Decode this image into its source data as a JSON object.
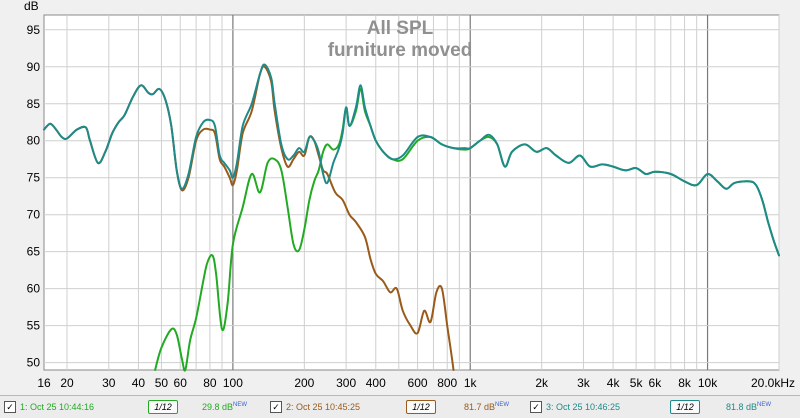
{
  "chart_data": {
    "type": "line",
    "title": "All SPL",
    "subtitle": "furniture moved",
    "ylabel": "dB",
    "xscale": "log",
    "xlim": [
      16,
      20000
    ],
    "ylim": [
      49,
      97
    ],
    "grid": true,
    "y_ticks": [
      50,
      55,
      60,
      65,
      70,
      75,
      80,
      85,
      90,
      95
    ],
    "x_ticks": [
      {
        "value": 16,
        "label": "16"
      },
      {
        "value": 20,
        "label": "20"
      },
      {
        "value": 30,
        "label": "30"
      },
      {
        "value": 40,
        "label": "40"
      },
      {
        "value": 50,
        "label": "50"
      },
      {
        "value": 60,
        "label": "60"
      },
      {
        "value": 80,
        "label": "80"
      },
      {
        "value": 100,
        "label": "100"
      },
      {
        "value": 200,
        "label": "200"
      },
      {
        "value": 300,
        "label": "300"
      },
      {
        "value": 400,
        "label": "400"
      },
      {
        "value": 600,
        "label": "600"
      },
      {
        "value": 800,
        "label": "800"
      },
      {
        "value": 1000,
        "label": "1k"
      },
      {
        "value": 2000,
        "label": "2k"
      },
      {
        "value": 3000,
        "label": "3k"
      },
      {
        "value": 4000,
        "label": "4k"
      },
      {
        "value": 5000,
        "label": "5k"
      },
      {
        "value": 6000,
        "label": "6k"
      },
      {
        "value": 8000,
        "label": "8k"
      },
      {
        "value": 10000,
        "label": "10k"
      },
      {
        "value": 20000,
        "label": "20.0kHz"
      }
    ],
    "series": [
      {
        "name": "1: Oct 25 10:44:16",
        "color": "#22aa22",
        "level": "29.8 dB",
        "points": [
          [
            47,
            49
          ],
          [
            50,
            52
          ],
          [
            55,
            54.5
          ],
          [
            58,
            53.8
          ],
          [
            61,
            50.5
          ],
          [
            63,
            49
          ],
          [
            66,
            53
          ],
          [
            70,
            56
          ],
          [
            75,
            61
          ],
          [
            78,
            63.5
          ],
          [
            82,
            64.5
          ],
          [
            85,
            62
          ],
          [
            90,
            54.5
          ],
          [
            95,
            58
          ],
          [
            100,
            66
          ],
          [
            110,
            71
          ],
          [
            120,
            75.5
          ],
          [
            130,
            73
          ],
          [
            140,
            77
          ],
          [
            150,
            77.5
          ],
          [
            160,
            76
          ],
          [
            170,
            71
          ],
          [
            180,
            66
          ],
          [
            190,
            65.2
          ],
          [
            200,
            68
          ],
          [
            210,
            72
          ],
          [
            220,
            74.5
          ],
          [
            230,
            76
          ],
          [
            240,
            78.5
          ],
          [
            250,
            79.5
          ],
          [
            265,
            78.8
          ],
          [
            280,
            79.5
          ],
          [
            290,
            81.5
          ],
          [
            300,
            84.5
          ],
          [
            310,
            82
          ],
          [
            330,
            84
          ],
          [
            345,
            87
          ],
          [
            360,
            84
          ],
          [
            380,
            82
          ],
          [
            400,
            80
          ],
          [
            430,
            78.5
          ],
          [
            470,
            77.5
          ],
          [
            520,
            77.5
          ],
          [
            600,
            80
          ],
          [
            680,
            80.5
          ],
          [
            760,
            79.5
          ],
          [
            850,
            79
          ],
          [
            950,
            78.8
          ],
          [
            1000,
            79
          ],
          [
            1100,
            80
          ],
          [
            1200,
            80.5
          ],
          [
            1300,
            79.5
          ],
          [
            1400,
            76.5
          ],
          [
            1500,
            78.5
          ],
          [
            1700,
            79.5
          ],
          [
            1900,
            78.5
          ],
          [
            2100,
            79
          ],
          [
            2300,
            78
          ],
          [
            2600,
            77
          ],
          [
            2900,
            78
          ],
          [
            3200,
            76.5
          ],
          [
            3600,
            76.8
          ],
          [
            4000,
            76.5
          ],
          [
            4500,
            76
          ],
          [
            5000,
            76.3
          ],
          [
            5500,
            75.5
          ],
          [
            6000,
            75.8
          ],
          [
            7000,
            75.5
          ],
          [
            8000,
            74.5
          ],
          [
            9000,
            74
          ],
          [
            10000,
            75.5
          ],
          [
            11000,
            74.5
          ],
          [
            12000,
            73.5
          ],
          [
            13000,
            74.3
          ],
          [
            15000,
            74.5
          ],
          [
            16000,
            74
          ],
          [
            17000,
            72
          ],
          [
            18000,
            69
          ],
          [
            19000,
            66.5
          ],
          [
            20000,
            64.5
          ]
        ]
      },
      {
        "name": "2: Oct 25 10:45:25",
        "color": "#9a5a1a",
        "level": "81.7 dB",
        "points": [
          [
            16,
            81.5
          ],
          [
            17,
            82.3
          ],
          [
            18,
            81.5
          ],
          [
            19,
            80.5
          ],
          [
            20,
            80.3
          ],
          [
            22,
            81.5
          ],
          [
            24,
            81.8
          ],
          [
            25,
            80
          ],
          [
            27,
            77
          ],
          [
            29,
            78.5
          ],
          [
            31,
            81
          ],
          [
            33,
            82.5
          ],
          [
            35,
            83.5
          ],
          [
            38,
            86
          ],
          [
            41,
            87.5
          ],
          [
            44,
            86.5
          ],
          [
            46,
            86.3
          ],
          [
            49,
            87
          ],
          [
            52,
            85.5
          ],
          [
            55,
            82
          ],
          [
            58,
            76
          ],
          [
            61,
            73.3
          ],
          [
            65,
            75
          ],
          [
            70,
            80
          ],
          [
            75,
            81.5
          ],
          [
            80,
            81.5
          ],
          [
            84,
            81
          ],
          [
            88,
            77.5
          ],
          [
            92,
            76.5
          ],
          [
            97,
            75
          ],
          [
            100,
            74
          ],
          [
            104,
            76
          ],
          [
            110,
            81
          ],
          [
            120,
            84
          ],
          [
            130,
            89
          ],
          [
            136,
            90
          ],
          [
            145,
            88
          ],
          [
            150,
            84
          ],
          [
            160,
            79
          ],
          [
            170,
            76.5
          ],
          [
            180,
            77.5
          ],
          [
            190,
            78.5
          ],
          [
            200,
            78
          ],
          [
            210,
            80.5
          ],
          [
            220,
            80
          ],
          [
            230,
            78
          ],
          [
            240,
            76
          ],
          [
            250,
            75.5
          ],
          [
            270,
            73
          ],
          [
            290,
            72
          ],
          [
            310,
            70
          ],
          [
            330,
            69
          ],
          [
            360,
            67
          ],
          [
            380,
            64
          ],
          [
            400,
            62
          ],
          [
            430,
            61
          ],
          [
            460,
            59.5
          ],
          [
            490,
            60
          ],
          [
            520,
            57
          ],
          [
            560,
            55
          ],
          [
            600,
            54
          ],
          [
            640,
            57
          ],
          [
            680,
            55.5
          ],
          [
            720,
            59.5
          ],
          [
            760,
            60
          ],
          [
            800,
            55
          ],
          [
            830,
            51.5
          ],
          [
            850,
            49
          ]
        ]
      },
      {
        "name": "3: Oct 25 10:46:25",
        "color": "#1e8a8a",
        "level": "81.8 dB",
        "points": [
          [
            16,
            81.5
          ],
          [
            17,
            82.3
          ],
          [
            18,
            81.5
          ],
          [
            19,
            80.5
          ],
          [
            20,
            80.3
          ],
          [
            22,
            81.5
          ],
          [
            24,
            81.8
          ],
          [
            25,
            80
          ],
          [
            27,
            77
          ],
          [
            29,
            78.5
          ],
          [
            31,
            81
          ],
          [
            33,
            82.5
          ],
          [
            35,
            83.5
          ],
          [
            38,
            86
          ],
          [
            41,
            87.5
          ],
          [
            44,
            86.5
          ],
          [
            46,
            86.3
          ],
          [
            49,
            87
          ],
          [
            52,
            85.5
          ],
          [
            55,
            82
          ],
          [
            58,
            76
          ],
          [
            61,
            73.5
          ],
          [
            65,
            75.5
          ],
          [
            70,
            80.5
          ],
          [
            75,
            82.5
          ],
          [
            80,
            82.8
          ],
          [
            84,
            82
          ],
          [
            88,
            78
          ],
          [
            92,
            77
          ],
          [
            97,
            76
          ],
          [
            100,
            75
          ],
          [
            104,
            77
          ],
          [
            110,
            82
          ],
          [
            120,
            85
          ],
          [
            130,
            89
          ],
          [
            136,
            90.3
          ],
          [
            145,
            88.5
          ],
          [
            150,
            85
          ],
          [
            160,
            79.5
          ],
          [
            170,
            77.5
          ],
          [
            180,
            78
          ],
          [
            190,
            79
          ],
          [
            200,
            78.5
          ],
          [
            210,
            80.5
          ],
          [
            220,
            80
          ],
          [
            230,
            78.5
          ],
          [
            240,
            75.5
          ],
          [
            250,
            74.3
          ],
          [
            265,
            77
          ],
          [
            280,
            79
          ],
          [
            290,
            81
          ],
          [
            300,
            84.5
          ],
          [
            310,
            82
          ],
          [
            330,
            84.5
          ],
          [
            345,
            87.5
          ],
          [
            360,
            84.5
          ],
          [
            380,
            82
          ],
          [
            400,
            80
          ],
          [
            430,
            78.5
          ],
          [
            470,
            77.5
          ],
          [
            520,
            78
          ],
          [
            600,
            80.5
          ],
          [
            680,
            80.5
          ],
          [
            760,
            79.5
          ],
          [
            850,
            79
          ],
          [
            950,
            79
          ],
          [
            1000,
            79
          ],
          [
            1100,
            80
          ],
          [
            1200,
            80.8
          ],
          [
            1300,
            79.5
          ],
          [
            1400,
            76.5
          ],
          [
            1500,
            78.5
          ],
          [
            1700,
            79.5
          ],
          [
            1900,
            78.5
          ],
          [
            2100,
            79
          ],
          [
            2300,
            78
          ],
          [
            2600,
            77
          ],
          [
            2900,
            78
          ],
          [
            3200,
            76.5
          ],
          [
            3600,
            76.8
          ],
          [
            4000,
            76.5
          ],
          [
            4500,
            76
          ],
          [
            5000,
            76.3
          ],
          [
            5500,
            75.5
          ],
          [
            6000,
            75.8
          ],
          [
            7000,
            75.5
          ],
          [
            8000,
            74.5
          ],
          [
            9000,
            74
          ],
          [
            10000,
            75.5
          ],
          [
            11000,
            74.5
          ],
          [
            12000,
            73.5
          ],
          [
            13000,
            74.3
          ],
          [
            15000,
            74.5
          ],
          [
            16000,
            74
          ],
          [
            17000,
            72
          ],
          [
            18000,
            69
          ],
          [
            19000,
            66.5
          ],
          [
            20000,
            64.5
          ]
        ]
      }
    ]
  },
  "legend": {
    "items": [
      {
        "label": "1: Oct 25 10:44:16",
        "smoothing": "1/12",
        "level": "29.8 dB",
        "badge": "NEW",
        "color": "#22aa22",
        "checked": "✓"
      },
      {
        "label": "2: Oct 25 10:45:25",
        "smoothing": "1/12",
        "level": "81.7 dB",
        "badge": "NEW",
        "color": "#9a5a1a",
        "checked": "✓"
      },
      {
        "label": "3: Oct 25 10:46:25",
        "smoothing": "1/12",
        "level": "81.8 dB",
        "badge": "NEW",
        "color": "#1e8a8a",
        "checked": "✓"
      }
    ]
  }
}
